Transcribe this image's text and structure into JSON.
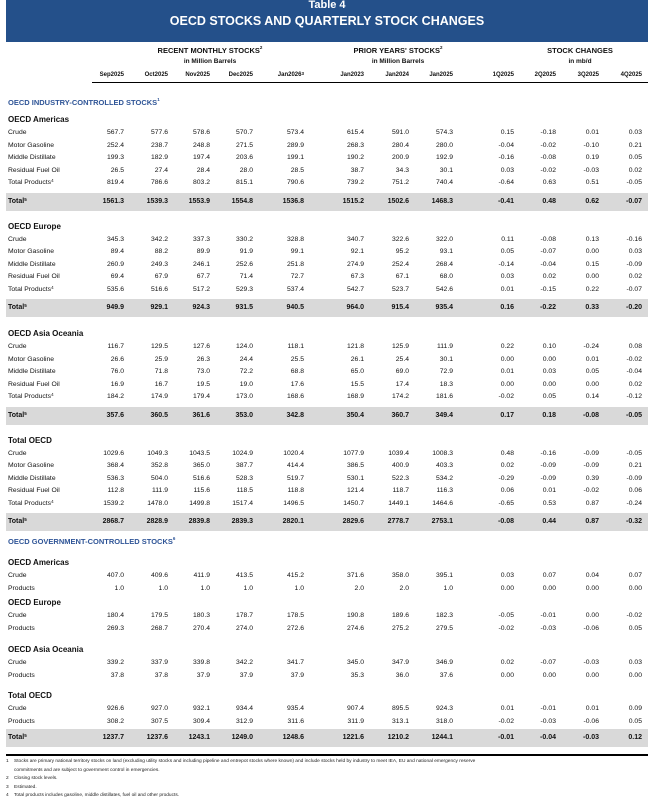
{
  "title": {
    "table_number": "Table 4",
    "main": "OECD STOCKS AND QUARTERLY STOCK CHANGES"
  },
  "colors": {
    "banner": "#24508a",
    "section_heading": "#2f5597",
    "total_band": "#d9d9d9"
  },
  "groups": [
    {
      "label": "RECENT MONTHLY STOCKS",
      "sup": "2",
      "unit": "in Million Barrels"
    },
    {
      "label": "PRIOR YEARS' STOCKS",
      "sup": "2",
      "unit": "in Million Barrels"
    },
    {
      "label": "STOCK CHANGES",
      "sup": "",
      "unit": "in mb/d"
    }
  ],
  "columns": [
    {
      "label": "Sep2025",
      "sup": ""
    },
    {
      "label": "Oct2025",
      "sup": ""
    },
    {
      "label": "Nov2025",
      "sup": ""
    },
    {
      "label": "Dec2025",
      "sup": ""
    },
    {
      "label": "Jan2026",
      "sup": "3"
    },
    {
      "label": "Jan2023",
      "sup": ""
    },
    {
      "label": "Jan2024",
      "sup": ""
    },
    {
      "label": "Jan2025",
      "sup": ""
    },
    {
      "label": "1Q2025",
      "sup": ""
    },
    {
      "label": "2Q2025",
      "sup": ""
    },
    {
      "label": "3Q2025",
      "sup": ""
    },
    {
      "label": "4Q2025",
      "sup": ""
    }
  ],
  "sections": [
    {
      "heading": "OECD INDUSTRY-CONTROLLED STOCKS",
      "sup": "1",
      "regions": [
        {
          "name": "OECD Americas",
          "rows": [
            {
              "label": "Crude",
              "values": [
                "567.7",
                "577.6",
                "578.6",
                "570.7",
                "573.4",
                "615.4",
                "591.0",
                "574.3",
                "0.15",
                "-0.18",
                "0.01",
                "0.03"
              ]
            },
            {
              "label": "Motor Gasoline",
              "values": [
                "252.4",
                "238.7",
                "248.8",
                "271.5",
                "289.9",
                "268.3",
                "280.4",
                "280.0",
                "-0.04",
                "-0.02",
                "-0.10",
                "0.21"
              ]
            },
            {
              "label": "Middle Distillate",
              "values": [
                "199.3",
                "182.9",
                "197.4",
                "203.6",
                "199.1",
                "190.2",
                "200.9",
                "192.9",
                "-0.16",
                "-0.08",
                "0.19",
                "0.05"
              ]
            },
            {
              "label": "Residual Fuel Oil",
              "values": [
                "26.5",
                "27.4",
                "28.4",
                "28.0",
                "28.5",
                "38.7",
                "34.3",
                "30.1",
                "0.03",
                "-0.02",
                "-0.03",
                "0.02"
              ]
            },
            {
              "label": "Total Products",
              "sup": "4",
              "values": [
                "819.4",
                "786.6",
                "803.2",
                "815.1",
                "790.6",
                "739.2",
                "751.2",
                "740.4",
                "-0.64",
                "0.63",
                "0.51",
                "-0.05"
              ]
            }
          ],
          "total": {
            "label": "Total",
            "sup": "5",
            "values": [
              "1561.3",
              "1539.3",
              "1553.9",
              "1554.8",
              "1536.8",
              "1515.2",
              "1502.6",
              "1468.3",
              "-0.41",
              "0.48",
              "0.62",
              "-0.07"
            ]
          }
        },
        {
          "name": "OECD Europe",
          "rows": [
            {
              "label": "Crude",
              "values": [
                "345.3",
                "342.2",
                "337.3",
                "330.2",
                "328.8",
                "340.7",
                "322.6",
                "322.0",
                "0.11",
                "-0.08",
                "0.13",
                "-0.16"
              ]
            },
            {
              "label": "Motor Gasoline",
              "values": [
                "89.4",
                "88.2",
                "89.9",
                "91.9",
                "99.1",
                "92.1",
                "95.2",
                "93.1",
                "0.05",
                "-0.07",
                "0.00",
                "0.03"
              ]
            },
            {
              "label": "Middle Distillate",
              "values": [
                "260.9",
                "249.3",
                "246.1",
                "252.6",
                "251.8",
                "274.9",
                "252.4",
                "268.4",
                "-0.14",
                "-0.04",
                "0.15",
                "-0.09"
              ]
            },
            {
              "label": "Residual Fuel Oil",
              "values": [
                "69.4",
                "67.9",
                "67.7",
                "71.4",
                "72.7",
                "67.3",
                "67.1",
                "68.0",
                "0.03",
                "0.02",
                "0.00",
                "0.02"
              ]
            },
            {
              "label": "Total Products",
              "sup": "4",
              "values": [
                "535.6",
                "516.6",
                "517.2",
                "529.3",
                "537.4",
                "542.7",
                "523.7",
                "542.6",
                "0.01",
                "-0.15",
                "0.22",
                "-0.07"
              ]
            }
          ],
          "total": {
            "label": "Total",
            "sup": "5",
            "values": [
              "949.9",
              "929.1",
              "924.3",
              "931.5",
              "940.5",
              "964.0",
              "915.4",
              "935.4",
              "0.16",
              "-0.22",
              "0.33",
              "-0.20"
            ]
          }
        },
        {
          "name": "OECD Asia Oceania",
          "rows": [
            {
              "label": "Crude",
              "values": [
                "116.7",
                "129.5",
                "127.6",
                "124.0",
                "118.1",
                "121.8",
                "125.9",
                "111.9",
                "0.22",
                "0.10",
                "-0.24",
                "0.08"
              ]
            },
            {
              "label": "Motor Gasoline",
              "values": [
                "26.6",
                "25.9",
                "26.3",
                "24.4",
                "25.5",
                "26.1",
                "25.4",
                "30.1",
                "0.00",
                "0.00",
                "0.01",
                "-0.02"
              ]
            },
            {
              "label": "Middle Distillate",
              "values": [
                "76.0",
                "71.8",
                "73.0",
                "72.2",
                "68.8",
                "65.0",
                "69.0",
                "72.9",
                "0.01",
                "0.03",
                "0.05",
                "-0.04"
              ]
            },
            {
              "label": "Residual Fuel Oil",
              "values": [
                "16.9",
                "16.7",
                "19.5",
                "19.0",
                "17.6",
                "15.5",
                "17.4",
                "18.3",
                "0.00",
                "0.00",
                "0.00",
                "0.02"
              ]
            },
            {
              "label": "Total Products",
              "sup": "4",
              "values": [
                "184.2",
                "174.9",
                "179.4",
                "173.0",
                "168.6",
                "168.9",
                "174.2",
                "181.6",
                "-0.02",
                "0.05",
                "0.14",
                "-0.12"
              ]
            }
          ],
          "total": {
            "label": "Total",
            "sup": "5",
            "values": [
              "357.6",
              "360.5",
              "361.6",
              "353.0",
              "342.8",
              "350.4",
              "360.7",
              "349.4",
              "0.17",
              "0.18",
              "-0.08",
              "-0.05"
            ]
          }
        },
        {
          "name": "Total OECD",
          "rows": [
            {
              "label": "Crude",
              "values": [
                "1029.6",
                "1049.3",
                "1043.5",
                "1024.9",
                "1020.4",
                "1077.9",
                "1039.4",
                "1008.3",
                "0.48",
                "-0.16",
                "-0.09",
                "-0.05"
              ]
            },
            {
              "label": "Motor Gasoline",
              "values": [
                "368.4",
                "352.8",
                "365.0",
                "387.7",
                "414.4",
                "386.5",
                "400.9",
                "403.3",
                "0.02",
                "-0.09",
                "-0.09",
                "0.21"
              ]
            },
            {
              "label": "Middle Distillate",
              "values": [
                "536.3",
                "504.0",
                "516.6",
                "528.3",
                "519.7",
                "530.1",
                "522.3",
                "534.2",
                "-0.29",
                "-0.09",
                "0.39",
                "-0.09"
              ]
            },
            {
              "label": "Residual Fuel Oil",
              "values": [
                "112.8",
                "111.9",
                "115.6",
                "118.5",
                "118.8",
                "121.4",
                "118.7",
                "116.3",
                "0.06",
                "0.01",
                "-0.02",
                "0.06"
              ]
            },
            {
              "label": "Total Products",
              "sup": "4",
              "values": [
                "1539.2",
                "1478.0",
                "1499.8",
                "1517.4",
                "1496.5",
                "1450.7",
                "1449.1",
                "1464.6",
                "-0.65",
                "0.53",
                "0.87",
                "-0.24"
              ]
            }
          ],
          "total": {
            "label": "Total",
            "sup": "5",
            "values": [
              "2868.7",
              "2828.9",
              "2839.8",
              "2839.3",
              "2820.1",
              "2829.6",
              "2778.7",
              "2753.1",
              "-0.08",
              "0.44",
              "0.87",
              "-0.32"
            ]
          }
        }
      ]
    },
    {
      "heading": "OECD GOVERNMENT-CONTROLLED STOCKS",
      "sup": "6",
      "regions": [
        {
          "name": "OECD Americas",
          "rows": [
            {
              "label": "Crude",
              "values": [
                "407.0",
                "409.6",
                "411.9",
                "413.5",
                "415.2",
                "371.6",
                "358.0",
                "395.1",
                "0.03",
                "0.07",
                "0.04",
                "0.07"
              ]
            },
            {
              "label": "Products",
              "values": [
                "1.0",
                "1.0",
                "1.0",
                "1.0",
                "1.0",
                "2.0",
                "2.0",
                "1.0",
                "0.00",
                "0.00",
                "0.00",
                "0.00"
              ]
            }
          ]
        },
        {
          "name": "OECD Europe",
          "rows": [
            {
              "label": "Crude",
              "values": [
                "180.4",
                "179.5",
                "180.3",
                "178.7",
                "178.5",
                "190.8",
                "189.6",
                "182.3",
                "-0.05",
                "-0.01",
                "0.00",
                "-0.02"
              ]
            },
            {
              "label": "Products",
              "values": [
                "269.3",
                "268.7",
                "270.4",
                "274.0",
                "272.6",
                "274.6",
                "275.2",
                "279.5",
                "-0.02",
                "-0.03",
                "-0.06",
                "0.05"
              ]
            }
          ]
        },
        {
          "name": "OECD Asia Oceania",
          "rows": [
            {
              "label": "Crude",
              "values": [
                "339.2",
                "337.9",
                "339.8",
                "342.2",
                "341.7",
                "345.0",
                "347.9",
                "346.9",
                "0.02",
                "-0.07",
                "-0.03",
                "0.03"
              ]
            },
            {
              "label": "Products",
              "values": [
                "37.8",
                "37.8",
                "37.9",
                "37.9",
                "37.9",
                "35.3",
                "36.0",
                "37.6",
                "0.00",
                "0.00",
                "0.00",
                "0.00"
              ]
            }
          ]
        },
        {
          "name": "Total OECD",
          "rows": [
            {
              "label": "Crude",
              "values": [
                "926.6",
                "927.0",
                "932.1",
                "934.4",
                "935.4",
                "907.4",
                "895.5",
                "924.3",
                "0.01",
                "-0.01",
                "0.01",
                "0.09"
              ]
            },
            {
              "label": "Products",
              "values": [
                "308.2",
                "307.5",
                "309.4",
                "312.9",
                "311.6",
                "311.9",
                "313.1",
                "318.0",
                "-0.02",
                "-0.03",
                "-0.06",
                "0.05"
              ]
            }
          ],
          "total": {
            "label": "Total",
            "sup": "5",
            "values": [
              "1237.7",
              "1237.6",
              "1243.1",
              "1249.0",
              "1248.6",
              "1221.6",
              "1210.2",
              "1244.1",
              "-0.01",
              "-0.04",
              "-0.03",
              "0.12"
            ]
          }
        }
      ]
    }
  ],
  "footnotes": [
    {
      "num": "1",
      "text": "Stocks are primary national territory stocks on land (excluding utility stocks and including pipeline and entrepot stocks where known) and include stocks held by industry to meet IEA, EU and national emergency reserve commitments and are subject to government control in emergencies."
    },
    {
      "num": "2",
      "text": "Closing stock levels."
    },
    {
      "num": "3",
      "text": "Estimated."
    },
    {
      "num": "4",
      "text": "Total products includes gasoline, middle distillates, fuel oil and other products."
    }
  ]
}
